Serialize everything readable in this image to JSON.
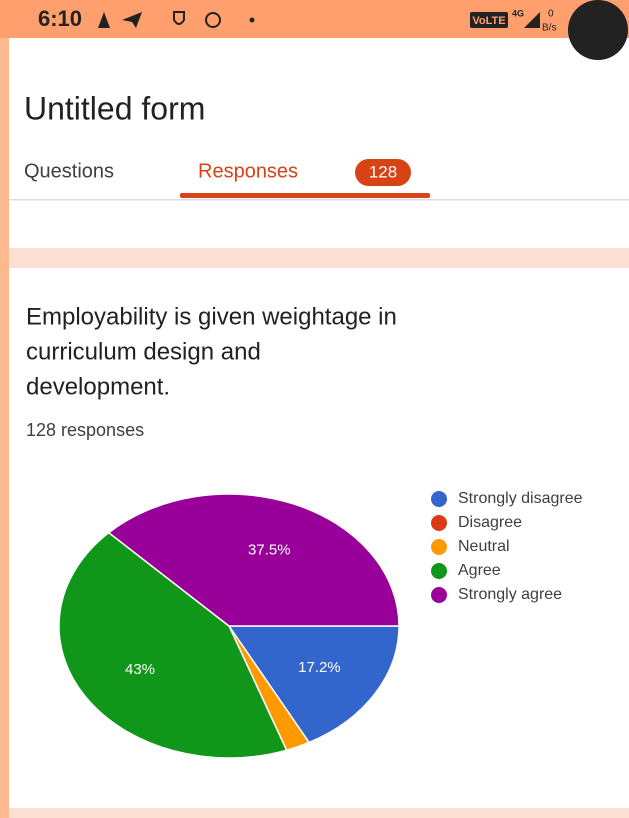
{
  "status_bar": {
    "time": "6:10",
    "network": "VoLTE",
    "signal": "4G",
    "speed_value": "0",
    "speed_unit": "B/s"
  },
  "header": {
    "title": "Untitled form"
  },
  "tabs": {
    "questions": "Questions",
    "responses": "Responses",
    "badge": "128"
  },
  "question": {
    "lines": [
      "Employability is given weightage in",
      "curriculum design and",
      "development."
    ],
    "count": "128 responses"
  },
  "chart_data": {
    "type": "pie",
    "categories": [
      "Strongly disagree",
      "Disagree",
      "Neutral",
      "Agree",
      "Strongly agree"
    ],
    "values": [
      17.2,
      0,
      2.3,
      43,
      37.5
    ],
    "value_labels": [
      "17.2%",
      null,
      null,
      "43%",
      "37.5%"
    ],
    "colors": [
      "#3366cc",
      "#dc3912",
      "#ff9900",
      "#109618",
      "#990099"
    ],
    "legend": "right"
  }
}
